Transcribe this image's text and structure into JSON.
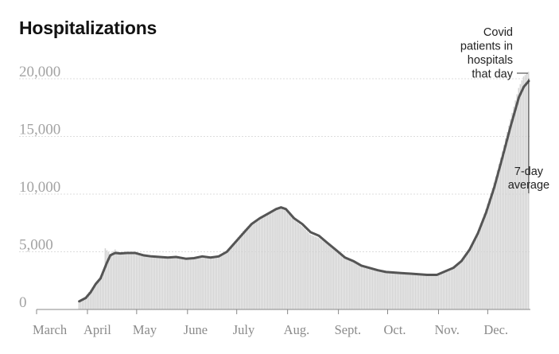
{
  "title": "Hospitalizations",
  "chart_data": {
    "type": "bar",
    "title": "Hospitalizations",
    "xlabel": "",
    "ylabel": "",
    "ylim": [
      0,
      20000
    ],
    "yticks": [
      0,
      5000,
      10000,
      15000,
      20000
    ],
    "ytick_labels": [
      "0",
      "5,000",
      "10,000",
      "15,000",
      "20,000"
    ],
    "x_range": [
      "2020-03-01",
      "2020-12-31"
    ],
    "month_labels": [
      "March",
      "April",
      "May",
      "June",
      "July",
      "Aug.",
      "Sept.",
      "Oct.",
      "Nov.",
      "Dec."
    ],
    "grid": true,
    "series": [
      {
        "name": "Covid patients in hospitals that day",
        "style": "daily bars",
        "color": "#d3d3d3",
        "points": [
          [
            "2020-03-27",
            600
          ],
          [
            "2020-03-31",
            1100
          ],
          [
            "2020-04-03",
            1700
          ],
          [
            "2020-04-06",
            2300
          ],
          [
            "2020-04-09",
            2800
          ],
          [
            "2020-04-11",
            3400
          ],
          [
            "2020-04-12",
            5300
          ],
          [
            "2020-04-15",
            4800
          ],
          [
            "2020-04-18",
            5200
          ],
          [
            "2020-04-21",
            4800
          ],
          [
            "2020-04-24",
            4800
          ],
          [
            "2020-04-28",
            4900
          ],
          [
            "2020-05-01",
            4900
          ],
          [
            "2020-05-05",
            4800
          ],
          [
            "2020-05-10",
            4500
          ],
          [
            "2020-05-15",
            4500
          ],
          [
            "2020-05-20",
            4400
          ],
          [
            "2020-05-25",
            4500
          ],
          [
            "2020-05-31",
            4400
          ],
          [
            "2020-06-05",
            4400
          ],
          [
            "2020-06-10",
            4600
          ],
          [
            "2020-06-15",
            4400
          ],
          [
            "2020-06-20",
            4600
          ],
          [
            "2020-06-25",
            5100
          ],
          [
            "2020-07-01",
            6100
          ],
          [
            "2020-07-05",
            6800
          ],
          [
            "2020-07-10",
            7500
          ],
          [
            "2020-07-15",
            8000
          ],
          [
            "2020-07-20",
            8300
          ],
          [
            "2020-07-25",
            8700
          ],
          [
            "2020-07-28",
            8900
          ],
          [
            "2020-07-31",
            8600
          ],
          [
            "2020-08-05",
            7800
          ],
          [
            "2020-08-10",
            7200
          ],
          [
            "2020-08-15",
            6500
          ],
          [
            "2020-08-20",
            6200
          ],
          [
            "2020-08-25",
            5700
          ],
          [
            "2020-08-31",
            5000
          ],
          [
            "2020-09-05",
            4500
          ],
          [
            "2020-09-10",
            4200
          ],
          [
            "2020-09-15",
            3800
          ],
          [
            "2020-09-20",
            3600
          ],
          [
            "2020-09-25",
            3400
          ],
          [
            "2020-09-30",
            3300
          ],
          [
            "2020-10-05",
            3200
          ],
          [
            "2020-10-10",
            3200
          ],
          [
            "2020-10-15",
            3100
          ],
          [
            "2020-10-20",
            3100
          ],
          [
            "2020-10-25",
            3000
          ],
          [
            "2020-10-31",
            3000
          ],
          [
            "2020-11-05",
            3200
          ],
          [
            "2020-11-10",
            3500
          ],
          [
            "2020-11-15",
            4100
          ],
          [
            "2020-11-20",
            5100
          ],
          [
            "2020-11-25",
            6700
          ],
          [
            "2020-11-30",
            8700
          ],
          [
            "2020-12-05",
            11000
          ],
          [
            "2020-12-10",
            13700
          ],
          [
            "2020-12-15",
            16500
          ],
          [
            "2020-12-20",
            19200
          ],
          [
            "2020-12-23",
            20200
          ],
          [
            "2020-12-26",
            20600
          ]
        ]
      },
      {
        "name": "7-day average",
        "style": "line",
        "color": "#555555",
        "points": [
          [
            "2020-03-27",
            700
          ],
          [
            "2020-03-31",
            1000
          ],
          [
            "2020-04-03",
            1500
          ],
          [
            "2020-04-06",
            2200
          ],
          [
            "2020-04-09",
            2700
          ],
          [
            "2020-04-11",
            3400
          ],
          [
            "2020-04-13",
            4100
          ],
          [
            "2020-04-15",
            4700
          ],
          [
            "2020-04-18",
            4900
          ],
          [
            "2020-04-21",
            4850
          ],
          [
            "2020-04-25",
            4900
          ],
          [
            "2020-04-30",
            4900
          ],
          [
            "2020-05-05",
            4700
          ],
          [
            "2020-05-10",
            4600
          ],
          [
            "2020-05-15",
            4550
          ],
          [
            "2020-05-20",
            4500
          ],
          [
            "2020-05-25",
            4550
          ],
          [
            "2020-05-31",
            4400
          ],
          [
            "2020-06-05",
            4450
          ],
          [
            "2020-06-10",
            4600
          ],
          [
            "2020-06-15",
            4500
          ],
          [
            "2020-06-20",
            4600
          ],
          [
            "2020-06-25",
            5000
          ],
          [
            "2020-06-30",
            5800
          ],
          [
            "2020-07-05",
            6600
          ],
          [
            "2020-07-10",
            7400
          ],
          [
            "2020-07-15",
            7900
          ],
          [
            "2020-07-20",
            8300
          ],
          [
            "2020-07-25",
            8700
          ],
          [
            "2020-07-28",
            8850
          ],
          [
            "2020-07-31",
            8700
          ],
          [
            "2020-08-05",
            7900
          ],
          [
            "2020-08-10",
            7400
          ],
          [
            "2020-08-15",
            6700
          ],
          [
            "2020-08-20",
            6400
          ],
          [
            "2020-08-25",
            5800
          ],
          [
            "2020-08-31",
            5100
          ],
          [
            "2020-09-05",
            4500
          ],
          [
            "2020-09-10",
            4200
          ],
          [
            "2020-09-15",
            3800
          ],
          [
            "2020-09-20",
            3600
          ],
          [
            "2020-09-25",
            3400
          ],
          [
            "2020-09-30",
            3250
          ],
          [
            "2020-10-05",
            3200
          ],
          [
            "2020-10-10",
            3150
          ],
          [
            "2020-10-15",
            3100
          ],
          [
            "2020-10-20",
            3050
          ],
          [
            "2020-10-25",
            3000
          ],
          [
            "2020-10-31",
            3000
          ],
          [
            "2020-11-05",
            3300
          ],
          [
            "2020-11-10",
            3600
          ],
          [
            "2020-11-15",
            4200
          ],
          [
            "2020-11-20",
            5200
          ],
          [
            "2020-11-25",
            6600
          ],
          [
            "2020-11-30",
            8400
          ],
          [
            "2020-12-05",
            10600
          ],
          [
            "2020-12-10",
            13200
          ],
          [
            "2020-12-15",
            15900
          ],
          [
            "2020-12-20",
            18400
          ],
          [
            "2020-12-23",
            19300
          ],
          [
            "2020-12-26",
            19800
          ]
        ]
      }
    ],
    "annotations": [
      {
        "lines": [
          "7-day",
          "average"
        ],
        "target": "7-day average peak"
      },
      {
        "lines": [
          "Covid",
          "patients in",
          "hospitals",
          "that day"
        ],
        "target": "latest daily bar"
      }
    ]
  }
}
